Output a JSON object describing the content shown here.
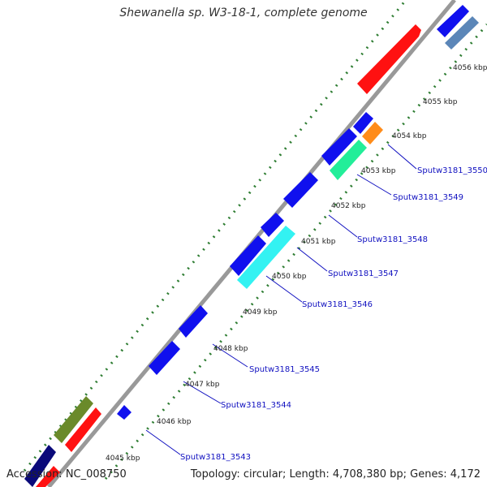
{
  "title": "Shewanella sp. W3-18-1, complete genome",
  "accession": "Accession: NC_008750",
  "summary": "Topology: circular; Length: 4,708,380 bp; Genes: 4,172",
  "colors": {
    "backbone": "#999999",
    "tick": "#2e7d32",
    "gene_label": "#1010c0",
    "blue": "#1010ee",
    "navy": "#0a0a7a",
    "red": "#ff1111",
    "olive": "#6a8a2a",
    "steel": "#5b86b8",
    "orange": "#ff8c1a",
    "teal": "#22ee99",
    "cyan": "#33f2f2"
  },
  "scale_labels": [
    "4045 kbp",
    "4046 kbp",
    "4047 kbp",
    "4048 kbp",
    "4049 kbp",
    "4050 kbp",
    "4051 kbp",
    "4052 kbp",
    "4053 kbp",
    "4054 kbp",
    "4055 kbp",
    "4056 kbp"
  ],
  "gene_labels": [
    "Sputw3181_3543",
    "Sputw3181_3544",
    "Sputw3181_3545",
    "Sputw3181_3546",
    "Sputw3181_3547",
    "Sputw3181_3548",
    "Sputw3181_3549",
    "Sputw3181_3550"
  ]
}
